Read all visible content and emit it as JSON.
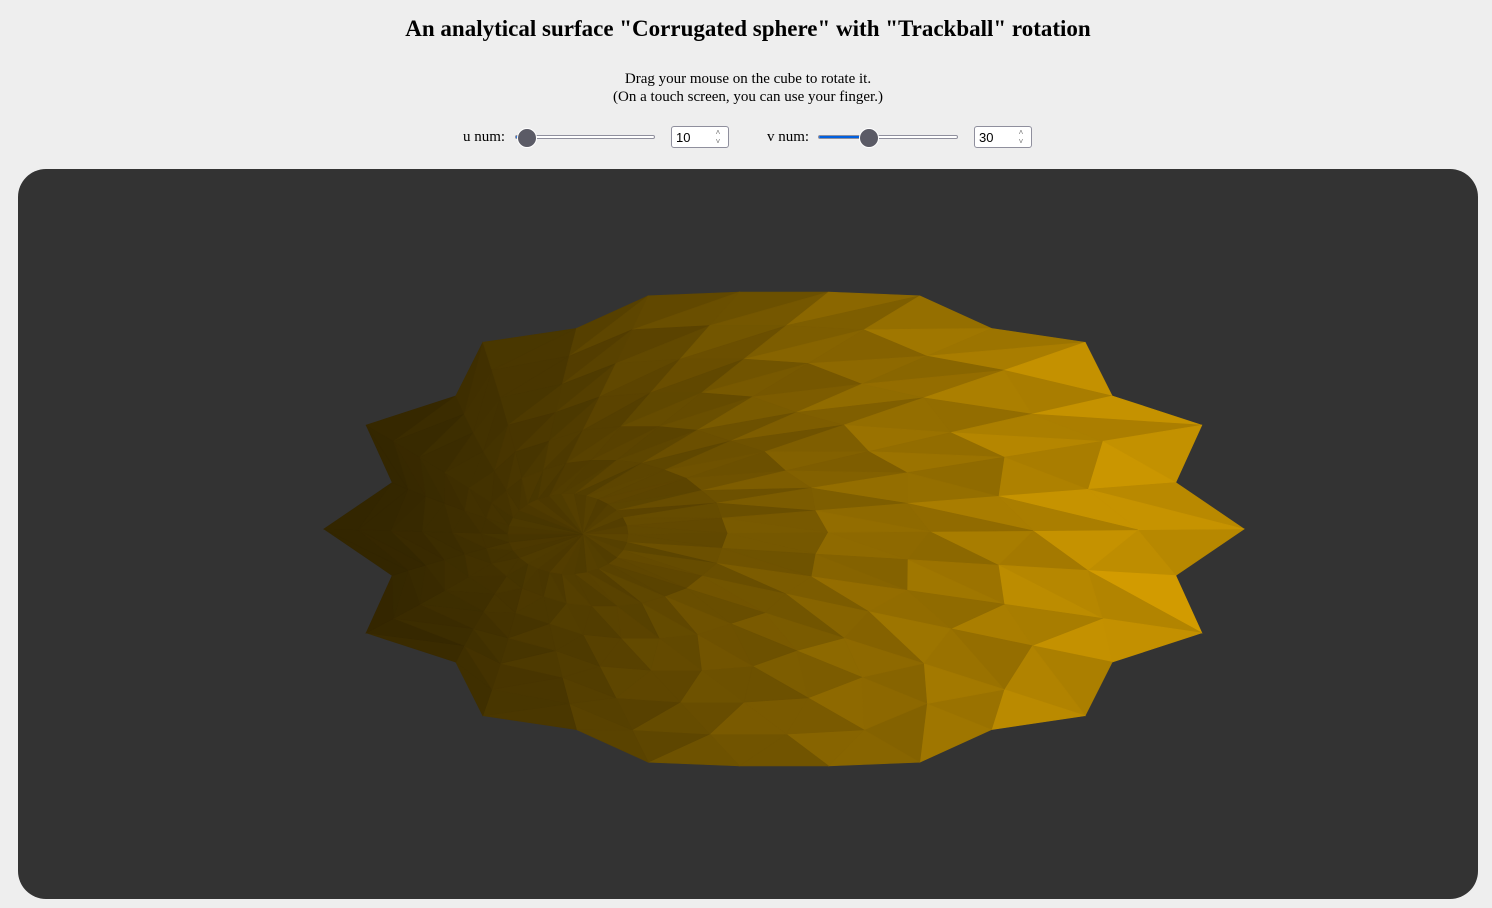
{
  "title": "An analytical surface \"Corrugated sphere\" with \"Trackball\" rotation",
  "instructions": {
    "line1": "Drag your mouse on the cube to rotate it.",
    "line2": "(On a touch screen, you can use your finger.)"
  },
  "controls": {
    "u": {
      "label": "u num:",
      "value": "10",
      "fraction": 0.08
    },
    "v": {
      "label": "v num:",
      "value": "30",
      "fraction": 0.36
    }
  },
  "colors": {
    "page_bg": "#eeeeee",
    "canvas_bg": "#333333",
    "surface_dark": "#332600",
    "surface_light": "#d49d00",
    "slider_fill": "#0060df",
    "slider_thumb": "#5b5b66"
  },
  "icons": {
    "spinner_up": "chevron-up-icon",
    "spinner_down": "chevron-down-icon"
  }
}
